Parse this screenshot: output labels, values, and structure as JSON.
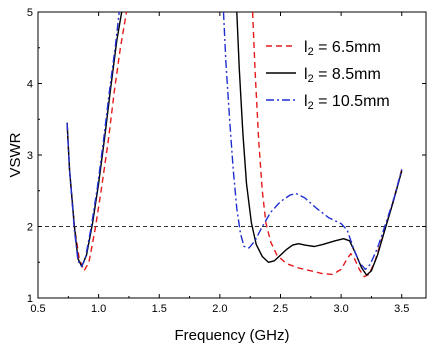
{
  "chart_data": {
    "type": "line",
    "xlabel": "Frequency (GHz)",
    "ylabel": "VSWR",
    "xlim": [
      0.5,
      3.7
    ],
    "ylim": [
      1,
      5
    ],
    "xticks": [
      "0.5",
      "1.0",
      "1.5",
      "2.0",
      "2.5",
      "3.0",
      "3.5"
    ],
    "xtick_values": [
      0.5,
      1.0,
      1.5,
      2.0,
      2.5,
      3.0,
      3.5
    ],
    "yticks": [
      "1",
      "2",
      "3",
      "4",
      "5"
    ],
    "ytick_values": [
      1,
      2,
      3,
      4,
      5
    ],
    "grid": false,
    "legend_position": "top-right",
    "reference_line": {
      "y": 2,
      "style": "dashed",
      "color": "#333333"
    },
    "series": [
      {
        "name": "l₂ = 6.5mm",
        "label_var": "l",
        "label_sub": "2",
        "label_rest": " = 6.5mm",
        "color": "#e41a1c",
        "dash": "6,4",
        "segments": [
          [
            [
              0.74,
              3.45
            ],
            [
              0.76,
              2.8
            ],
            [
              0.8,
              2.0
            ],
            [
              0.84,
              1.55
            ],
            [
              0.88,
              1.38
            ],
            [
              0.92,
              1.5
            ],
            [
              0.97,
              1.95
            ],
            [
              1.02,
              2.5
            ],
            [
              1.08,
              3.2
            ],
            [
              1.13,
              3.9
            ],
            [
              1.18,
              4.5
            ],
            [
              1.23,
              5.0
            ]
          ],
          [
            [
              2.27,
              5.0
            ],
            [
              2.29,
              4.2
            ],
            [
              2.32,
              3.2
            ],
            [
              2.35,
              2.5
            ],
            [
              2.38,
              2.05
            ],
            [
              2.42,
              1.78
            ],
            [
              2.47,
              1.6
            ],
            [
              2.55,
              1.48
            ],
            [
              2.65,
              1.42
            ],
            [
              2.75,
              1.38
            ],
            [
              2.85,
              1.34
            ],
            [
              2.93,
              1.33
            ],
            [
              3.0,
              1.4
            ],
            [
              3.05,
              1.55
            ],
            [
              3.08,
              1.62
            ],
            [
              3.11,
              1.55
            ],
            [
              3.15,
              1.4
            ],
            [
              3.19,
              1.3
            ],
            [
              3.23,
              1.33
            ],
            [
              3.28,
              1.52
            ],
            [
              3.35,
              1.9
            ],
            [
              3.42,
              2.3
            ],
            [
              3.5,
              2.8
            ]
          ]
        ]
      },
      {
        "name": "l₂ = 8.5mm",
        "label_var": "l",
        "label_sub": "2",
        "label_rest": " = 8.5mm",
        "color": "#000000",
        "dash": "",
        "segments": [
          [
            [
              0.74,
              3.45
            ],
            [
              0.76,
              2.8
            ],
            [
              0.8,
              2.0
            ],
            [
              0.83,
              1.55
            ],
            [
              0.86,
              1.44
            ],
            [
              0.9,
              1.6
            ],
            [
              0.95,
              2.05
            ],
            [
              1.0,
              2.6
            ],
            [
              1.05,
              3.25
            ],
            [
              1.1,
              3.95
            ],
            [
              1.15,
              4.6
            ],
            [
              1.19,
              5.0
            ]
          ],
          [
            [
              2.14,
              5.0
            ],
            [
              2.16,
              4.2
            ],
            [
              2.19,
              3.3
            ],
            [
              2.22,
              2.6
            ],
            [
              2.26,
              2.05
            ],
            [
              2.3,
              1.75
            ],
            [
              2.35,
              1.58
            ],
            [
              2.4,
              1.5
            ],
            [
              2.45,
              1.52
            ],
            [
              2.5,
              1.6
            ],
            [
              2.55,
              1.68
            ],
            [
              2.6,
              1.74
            ],
            [
              2.65,
              1.76
            ],
            [
              2.7,
              1.74
            ],
            [
              2.78,
              1.72
            ],
            [
              2.85,
              1.75
            ],
            [
              2.95,
              1.8
            ],
            [
              3.02,
              1.83
            ],
            [
              3.07,
              1.8
            ],
            [
              3.12,
              1.62
            ],
            [
              3.17,
              1.42
            ],
            [
              3.21,
              1.32
            ],
            [
              3.25,
              1.38
            ],
            [
              3.3,
              1.6
            ],
            [
              3.36,
              1.95
            ],
            [
              3.43,
              2.35
            ],
            [
              3.5,
              2.78
            ]
          ]
        ]
      },
      {
        "name": "l₂ = 10.5mm",
        "label_var": "l",
        "label_sub": "2",
        "label_rest": " = 10.5mm",
        "color": "#1f2fcf",
        "dash": "8,3,2,3",
        "segments": [
          [
            [
              0.74,
              3.45
            ],
            [
              0.76,
              2.8
            ],
            [
              0.8,
              1.95
            ],
            [
              0.83,
              1.52
            ],
            [
              0.86,
              1.44
            ],
            [
              0.89,
              1.55
            ],
            [
              0.94,
              2.0
            ],
            [
              0.99,
              2.55
            ],
            [
              1.04,
              3.2
            ],
            [
              1.09,
              3.9
            ],
            [
              1.14,
              4.55
            ],
            [
              1.17,
              5.0
            ]
          ],
          [
            [
              2.03,
              5.0
            ],
            [
              2.05,
              4.3
            ],
            [
              2.08,
              3.5
            ],
            [
              2.11,
              2.8
            ],
            [
              2.14,
              2.25
            ],
            [
              2.17,
              1.9
            ],
            [
              2.2,
              1.72
            ],
            [
              2.24,
              1.7
            ],
            [
              2.29,
              1.8
            ],
            [
              2.35,
              2.0
            ],
            [
              2.42,
              2.2
            ],
            [
              2.5,
              2.35
            ],
            [
              2.58,
              2.44
            ],
            [
              2.63,
              2.46
            ],
            [
              2.7,
              2.4
            ],
            [
              2.8,
              2.25
            ],
            [
              2.9,
              2.12
            ],
            [
              3.0,
              2.04
            ],
            [
              3.05,
              1.95
            ],
            [
              3.1,
              1.7
            ],
            [
              3.15,
              1.5
            ],
            [
              3.2,
              1.4
            ],
            [
              3.24,
              1.47
            ],
            [
              3.3,
              1.7
            ],
            [
              3.37,
              2.05
            ],
            [
              3.44,
              2.42
            ],
            [
              3.5,
              2.8
            ]
          ]
        ]
      }
    ]
  }
}
